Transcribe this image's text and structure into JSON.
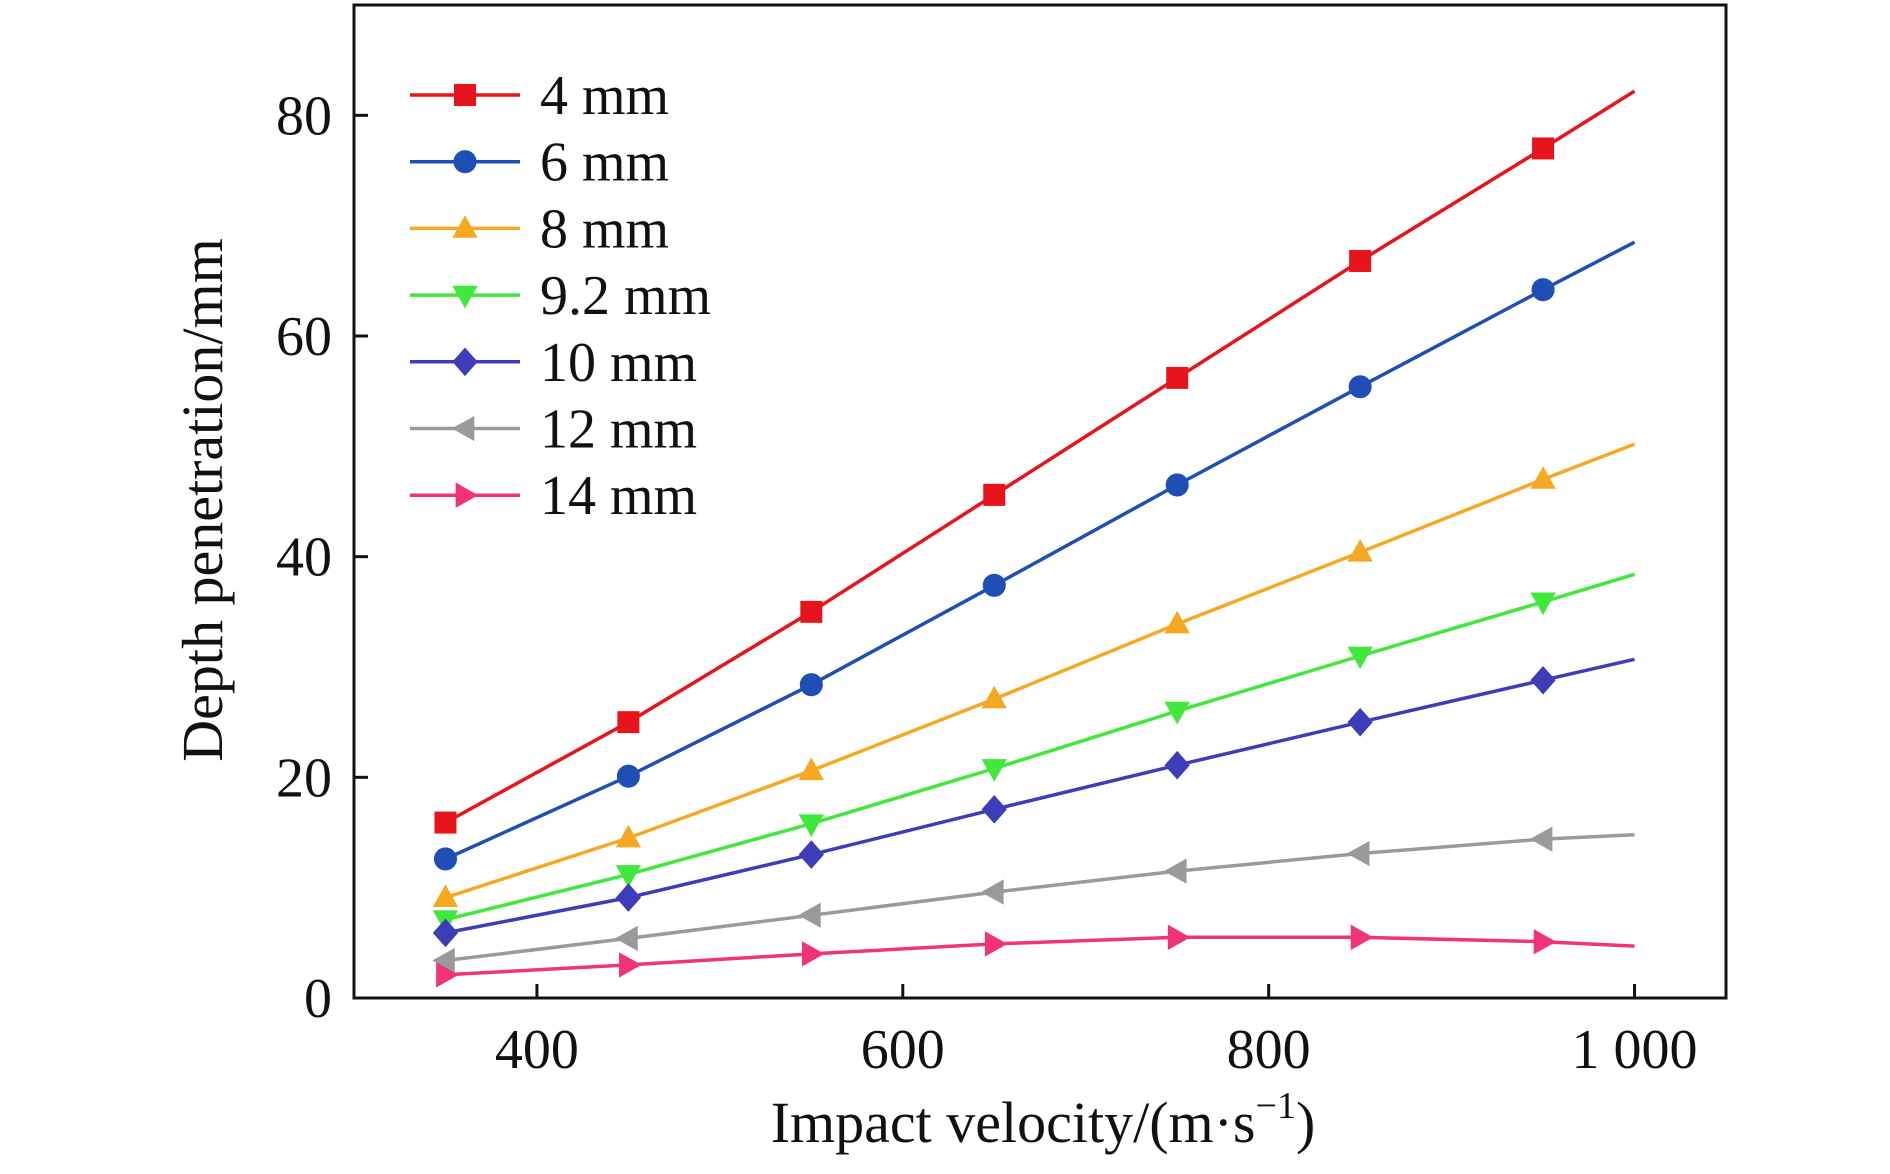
{
  "chart_data": {
    "type": "line",
    "title": "",
    "xlabel": "Impact velocity/(m·s",
    "xlabel_sup": "−1",
    "xlabel_close": ")",
    "ylabel": "Depth penetration/mm",
    "xlim": [
      300,
      1050
    ],
    "ylim": [
      0,
      90
    ],
    "x_ticks": [
      400,
      600,
      800,
      1000
    ],
    "x_tick_labels": [
      "400",
      "600",
      "800",
      "1 000"
    ],
    "y_ticks": [
      0,
      20,
      40,
      60,
      80
    ],
    "y_tick_labels": [
      "0",
      "20",
      "40",
      "60",
      "80"
    ],
    "grid": false,
    "legend_position": "top-left",
    "x": [
      350,
      450,
      550,
      650,
      750,
      850,
      950,
      1000
    ],
    "series": [
      {
        "name": "4 mm",
        "color": "#e8141b",
        "marker": "square",
        "values": [
          15.9,
          25.0,
          35.0,
          45.6,
          56.2,
          66.8,
          77.0,
          82.2
        ]
      },
      {
        "name": "6 mm",
        "color": "#1f4fb4",
        "marker": "circle",
        "values": [
          12.6,
          20.1,
          28.4,
          37.4,
          46.5,
          55.4,
          64.2,
          68.5
        ]
      },
      {
        "name": "8 mm",
        "color": "#f7a823",
        "marker": "triangle-up",
        "values": [
          9.1,
          14.5,
          20.6,
          27.1,
          33.9,
          40.4,
          47.0,
          50.2
        ]
      },
      {
        "name": "9.2 mm",
        "color": "#3fe83a",
        "marker": "triangle-down",
        "values": [
          7.1,
          11.2,
          15.8,
          20.8,
          26.0,
          31.0,
          35.9,
          38.4
        ]
      },
      {
        "name": "10 mm",
        "color": "#3d3db9",
        "marker": "diamond",
        "values": [
          5.9,
          9.1,
          13.0,
          17.1,
          21.1,
          25.0,
          28.8,
          30.7
        ]
      },
      {
        "name": "12 mm",
        "color": "#9a9a9a",
        "marker": "triangle-left",
        "values": [
          3.4,
          5.4,
          7.5,
          9.6,
          11.5,
          13.1,
          14.4,
          14.8
        ]
      },
      {
        "name": "14 mm",
        "color": "#f0337a",
        "marker": "triangle-right",
        "values": [
          2.1,
          3.0,
          4.0,
          4.9,
          5.5,
          5.5,
          5.1,
          4.7
        ]
      }
    ]
  }
}
